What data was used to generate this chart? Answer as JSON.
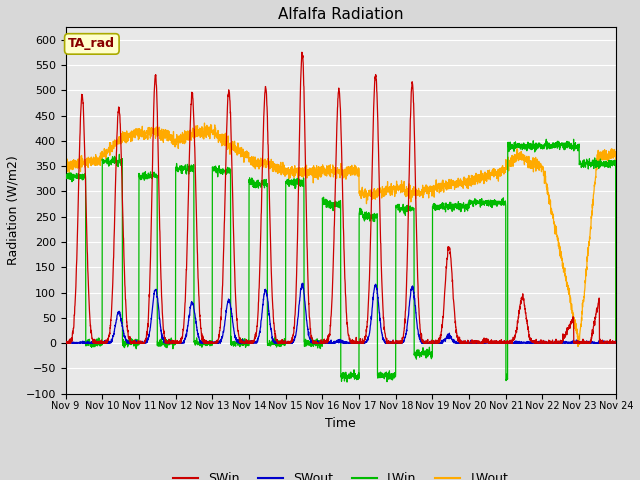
{
  "title": "Alfalfa Radiation",
  "xlabel": "Time",
  "ylabel": "Radiation (W/m2)",
  "ylim": [
    -100,
    625
  ],
  "yticks": [
    -100,
    -50,
    0,
    50,
    100,
    150,
    200,
    250,
    300,
    350,
    400,
    450,
    500,
    550,
    600
  ],
  "xlim": [
    0,
    15
  ],
  "xtick_labels": [
    "Nov 9",
    "Nov 10",
    "Nov 11",
    "Nov 12",
    "Nov 13",
    "Nov 14",
    "Nov 15",
    "Nov 16",
    "Nov 17",
    "Nov 18",
    "Nov 19",
    "Nov 20",
    "Nov 21",
    "Nov 22",
    "Nov 23",
    "Nov 24"
  ],
  "xtick_positions": [
    0,
    1,
    2,
    3,
    4,
    5,
    6,
    7,
    8,
    9,
    10,
    11,
    12,
    13,
    14,
    15
  ],
  "colors": {
    "SWin": "#cc0000",
    "SWout": "#0000cc",
    "LWin": "#00bb00",
    "LWout": "#ffaa00"
  },
  "annotation_text": "TA_rad",
  "annotation_fg": "#880000",
  "annotation_bg": "#ffffcc",
  "annotation_edge": "#aaaa00",
  "background_color": "#e8e8e8",
  "plot_bg": "#e8e8e8",
  "grid_color": "#ffffff",
  "title_fontsize": 11,
  "axis_fontsize": 9,
  "tick_fontsize": 8,
  "legend_fontsize": 9
}
